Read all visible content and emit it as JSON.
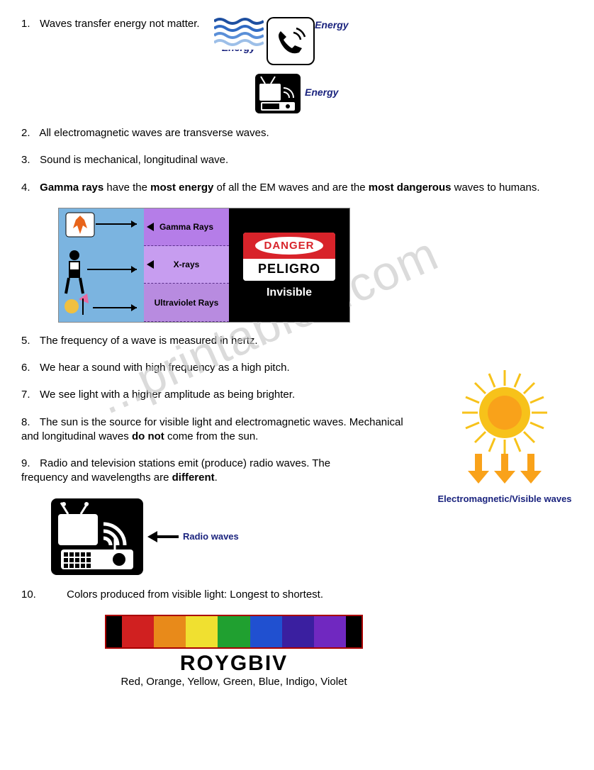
{
  "items": [
    {
      "num": "1.",
      "text": " Waves transfer energy not matter."
    },
    {
      "num": "2.",
      "text": "All electromagnetic waves are transverse waves."
    },
    {
      "num": "3.",
      "text": "Sound is mechanical, longitudinal wave."
    },
    {
      "num": "4.",
      "prefix": "",
      "parts": [
        {
          "t": "Gamma rays",
          "b": true
        },
        {
          "t": "  have the ",
          "b": false
        },
        {
          "t": "most energy",
          "b": true
        },
        {
          "t": " of all the EM waves and are the ",
          "b": false
        },
        {
          "t": "most dangerous",
          "b": true
        },
        {
          "t": " waves to humans.",
          "b": false
        }
      ]
    },
    {
      "num": "5.",
      "text": "The frequency of a wave is measured in hertz."
    },
    {
      "num": "6.",
      "text": "We hear a sound with high frequency as a high pitch."
    },
    {
      "num": "7.",
      "text": "We see light with a higher amplitude as being brighter."
    },
    {
      "num": "8.",
      "parts": [
        {
          "t": "The sun is the source for visible light and electromagnetic waves.   Mechanical and longitudinal waves ",
          "b": false
        },
        {
          "t": "do not",
          "b": true
        },
        {
          "t": " come from the sun.",
          "b": false
        }
      ]
    },
    {
      "num": "9.",
      "parts": [
        {
          "t": "Radio and television stations emit (produce) radio waves.   The frequency and wavelengths are ",
          "b": false
        },
        {
          "t": "different",
          "b": true
        },
        {
          "t": ".",
          "b": false
        }
      ]
    },
    {
      "num": "10.",
      "text": "Colors produced from visible light: Longest to shortest."
    }
  ],
  "labels": {
    "energy": "Energy",
    "radio_waves": "Radio waves",
    "em_visible": "Electromagnetic/Visible waves",
    "roygbiv": "ROYGBIV",
    "colors_list": "Red, Orange, Yellow, Green, Blue, Indigo, Violet",
    "watermark": "...printables.com"
  },
  "gamma": {
    "col2_segments": [
      {
        "label": "Gamma Rays",
        "bg": "#b57de8",
        "arrow": true
      },
      {
        "label": "X-rays",
        "bg": "#c79df0",
        "arrow": true
      },
      {
        "label": "Ultraviolet Rays",
        "bg": "#b88be0",
        "arrow": false
      }
    ],
    "invisible": "Invisible",
    "danger_top": "DANGER",
    "danger_bot": "PELIGRO"
  },
  "spectrum": {
    "colors": [
      "#d02020",
      "#e88a1a",
      "#f0e030",
      "#20a030",
      "#2050d0",
      "#3a1fa0",
      "#7028c0"
    ],
    "edge": "#000000",
    "border": "#a00000"
  },
  "sun": {
    "body": "#f7c21a",
    "core": "#f9a21a",
    "arrows": "#f9a21a"
  },
  "wave_colors": [
    "#1e4fa0",
    "#2f69c2",
    "#5a8fd8",
    "#9dbfe8"
  ]
}
